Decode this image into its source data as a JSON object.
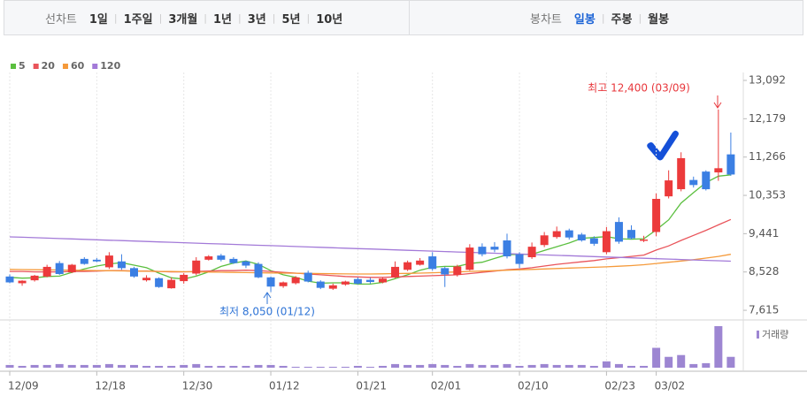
{
  "header": {
    "left_label": "선차트",
    "left_tabs": [
      {
        "label": "1일"
      },
      {
        "label": "1주일"
      },
      {
        "label": "3개월"
      },
      {
        "label": "1년"
      },
      {
        "label": "3년"
      },
      {
        "label": "5년"
      },
      {
        "label": "10년"
      }
    ],
    "right_label": "봉차트",
    "right_tabs": [
      {
        "label": "일봉",
        "active": true
      },
      {
        "label": "주봉",
        "active": false
      },
      {
        "label": "월봉",
        "active": false
      }
    ]
  },
  "chart_data": {
    "type": "candlestick",
    "categories": [
      "12/09",
      null,
      null,
      null,
      null,
      null,
      null,
      "12/18",
      null,
      null,
      null,
      null,
      null,
      null,
      "12/30",
      null,
      null,
      null,
      null,
      null,
      null,
      "01/12",
      null,
      null,
      null,
      null,
      null,
      null,
      "01/21",
      null,
      null,
      null,
      null,
      null,
      "02/01",
      null,
      null,
      null,
      null,
      null,
      null,
      "02/10",
      null,
      null,
      null,
      null,
      null,
      null,
      "02/23",
      null,
      null,
      null,
      "03/02",
      null,
      null,
      null,
      null,
      null,
      null
    ],
    "up_color": "#ec3a3b",
    "down_color": "#3b7fe3",
    "open": [
      8420,
      8260,
      8330,
      8420,
      8740,
      8520,
      8840,
      8820,
      8640,
      8780,
      8620,
      8330,
      8380,
      8140,
      8310,
      8490,
      8820,
      8920,
      8840,
      8780,
      8720,
      8400,
      8190,
      8260,
      8510,
      8300,
      8130,
      8230,
      8360,
      8340,
      8280,
      8400,
      8580,
      8700,
      8900,
      8620,
      8460,
      8580,
      9130,
      9130,
      9280,
      8950,
      8880,
      9170,
      9360,
      9520,
      9420,
      9330,
      9000,
      9720,
      9530,
      9270,
      9480,
      10330,
      10500,
      10720,
      10920,
      10900,
      11330
    ],
    "high": [
      8470,
      8330,
      8460,
      8700,
      8790,
      8720,
      8880,
      8860,
      9000,
      8950,
      8650,
      8450,
      8400,
      8400,
      8500,
      8880,
      8930,
      8960,
      8880,
      8800,
      8760,
      8420,
      8300,
      8430,
      8560,
      8330,
      8250,
      8320,
      8400,
      8390,
      8390,
      8780,
      8800,
      8860,
      9000,
      8650,
      8700,
      9190,
      9210,
      9240,
      9440,
      9000,
      9230,
      9480,
      9610,
      9560,
      9460,
      9380,
      9600,
      9830,
      9640,
      9390,
      10400,
      10950,
      11380,
      10800,
      10950,
      12400,
      11850
    ],
    "low": [
      8260,
      8200,
      8300,
      8400,
      8460,
      8500,
      8700,
      8760,
      8600,
      8580,
      8390,
      8300,
      8150,
      8130,
      8250,
      8450,
      8800,
      8780,
      8720,
      8620,
      8380,
      8050,
      8150,
      8230,
      8280,
      8120,
      8100,
      8200,
      8230,
      8250,
      8260,
      8380,
      8550,
      8680,
      8560,
      8170,
      8420,
      8560,
      8900,
      9000,
      8850,
      8620,
      8840,
      9120,
      9320,
      9300,
      9250,
      9150,
      8950,
      9200,
      9300,
      9240,
      9380,
      10280,
      10450,
      10540,
      10470,
      10700,
      10820
    ],
    "close": [
      8280,
      8320,
      8440,
      8650,
      8480,
      8700,
      8720,
      8780,
      8920,
      8620,
      8420,
      8390,
      8170,
      8340,
      8460,
      8800,
      8900,
      8820,
      8740,
      8680,
      8400,
      8180,
      8280,
      8400,
      8300,
      8150,
      8210,
      8300,
      8250,
      8290,
      8370,
      8650,
      8760,
      8800,
      8600,
      8470,
      8660,
      9110,
      8950,
      9060,
      8900,
      8720,
      9130,
      9400,
      9500,
      9350,
      9280,
      9200,
      9500,
      9250,
      9330,
      9300,
      10270,
      10710,
      11240,
      10600,
      10500,
      11000,
      10850
    ],
    "moving_averages": [
      {
        "name": "5",
        "color": "#5bbf3f",
        "values": [
          8400,
          8380,
          8390,
          8420,
          8430,
          8520,
          8600,
          8670,
          8720,
          8750,
          8690,
          8630,
          8500,
          8390,
          8360,
          8430,
          8530,
          8660,
          8740,
          8790,
          8710,
          8560,
          8460,
          8400,
          8310,
          8260,
          8270,
          8270,
          8240,
          8240,
          8280,
          8370,
          8460,
          8570,
          8640,
          8660,
          8660,
          8730,
          8760,
          8850,
          8940,
          8950,
          8950,
          9040,
          9130,
          9220,
          9330,
          9350,
          9370,
          9320,
          9310,
          9320,
          9530,
          9770,
          10170,
          10420,
          10660,
          10810,
          10840
        ]
      },
      {
        "name": "20",
        "color": "#e9545a",
        "values": [
          8540,
          8540,
          8530,
          8530,
          8530,
          8540,
          8540,
          8550,
          8560,
          8560,
          8550,
          8550,
          8540,
          8530,
          8530,
          8540,
          8550,
          8560,
          8560,
          8570,
          8560,
          8540,
          8520,
          8500,
          8480,
          8460,
          8440,
          8420,
          8410,
          8400,
          8400,
          8410,
          8420,
          8430,
          8440,
          8450,
          8460,
          8490,
          8520,
          8550,
          8580,
          8600,
          8630,
          8670,
          8710,
          8740,
          8770,
          8800,
          8840,
          8870,
          8900,
          8930,
          9050,
          9150,
          9280,
          9400,
          9520,
          9650,
          9780
        ]
      },
      {
        "name": "60",
        "color": "#f59a3a",
        "values": [
          8590,
          8586,
          8582,
          8578,
          8574,
          8570,
          8566,
          8562,
          8558,
          8554,
          8550,
          8546,
          8542,
          8538,
          8534,
          8530,
          8526,
          8522,
          8518,
          8514,
          8510,
          8506,
          8502,
          8498,
          8494,
          8490,
          8486,
          8482,
          8480,
          8480,
          8485,
          8490,
          8495,
          8500,
          8510,
          8520,
          8530,
          8540,
          8550,
          8560,
          8570,
          8580,
          8590,
          8600,
          8610,
          8620,
          8630,
          8640,
          8650,
          8665,
          8680,
          8700,
          8730,
          8760,
          8790,
          8820,
          8860,
          8900,
          8950
        ]
      },
      {
        "name": "120",
        "color": "#a37ad8",
        "values": [
          9365,
          9355,
          9345,
          9335,
          9325,
          9315,
          9305,
          9295,
          9285,
          9275,
          9265,
          9255,
          9245,
          9235,
          9225,
          9215,
          9205,
          9195,
          9185,
          9175,
          9165,
          9155,
          9145,
          9135,
          9125,
          9115,
          9105,
          9095,
          9085,
          9075,
          9065,
          9055,
          9045,
          9035,
          9025,
          9015,
          9005,
          8995,
          8985,
          8975,
          8965,
          8955,
          8945,
          8935,
          8925,
          8915,
          8905,
          8895,
          8885,
          8875,
          8865,
          8855,
          8845,
          8835,
          8825,
          8815,
          8805,
          8795,
          8785
        ]
      }
    ],
    "volume": {
      "name": "거래량",
      "color": "#9d86d2",
      "values": [
        3,
        2,
        3,
        3,
        4,
        3,
        3,
        3,
        4,
        3,
        3,
        2,
        2,
        2,
        3,
        4,
        2,
        2,
        2,
        2,
        3,
        3,
        2,
        1,
        1,
        1,
        1,
        1,
        2,
        1,
        2,
        4,
        3,
        3,
        4,
        3,
        2,
        4,
        3,
        3,
        4,
        2,
        3,
        4,
        3,
        3,
        3,
        2,
        7,
        4,
        2,
        2,
        22,
        12,
        14,
        4,
        5,
        46,
        12
      ]
    },
    "ylim": [
      7427,
      13218
    ],
    "yticks": [
      {
        "value": 7615,
        "label": "7,615"
      },
      {
        "value": 8528,
        "label": "8,528"
      },
      {
        "value": 9441,
        "label": "9,441"
      },
      {
        "value": 10353,
        "label": "10,353"
      },
      {
        "value": 11266,
        "label": "11,266"
      },
      {
        "value": 12179,
        "label": "12,179"
      },
      {
        "value": 13092,
        "label": "13,092"
      }
    ],
    "grid": true,
    "annotations": [
      {
        "text": "최고 12,400 (03/09)",
        "color": "#e8383d"
      },
      {
        "text": "최저 8,050 (01/12)",
        "color": "#2f74d6"
      }
    ]
  }
}
